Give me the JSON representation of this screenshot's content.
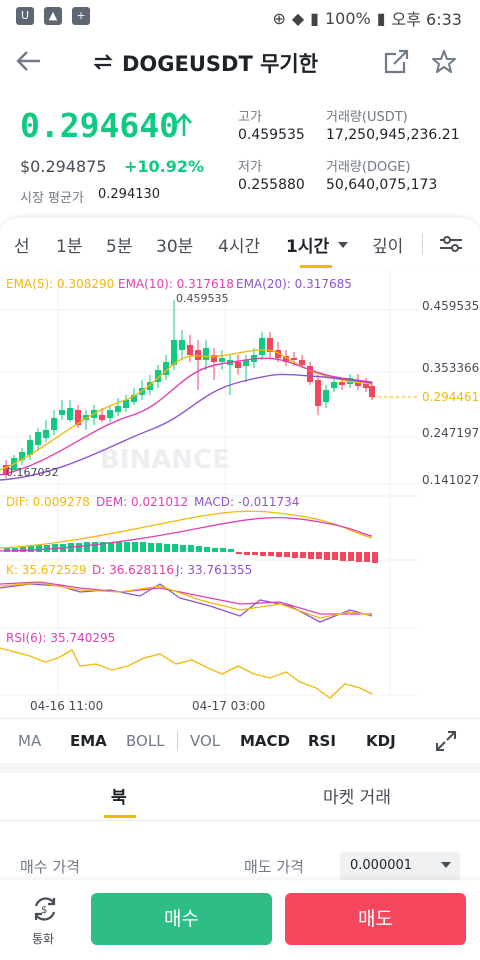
{
  "status_bar": {
    "battery": "100%",
    "time": "오후 6:33"
  },
  "header": {
    "title": "DOGEUSDT 무기한"
  },
  "ticker": {
    "price": "0.294640",
    "usd_price": "$0.294875",
    "change": "+10.92%",
    "mark_label": "시장 평균가",
    "mark_value": "0.294130",
    "high_label": "고가",
    "high_value": "0.459535",
    "low_label": "저가",
    "low_value": "0.255880",
    "vol_usdt_label": "거래량(USDT)",
    "vol_usdt_value": "17,250,945,236.21",
    "vol_doge_label": "거래량(DOGE)",
    "vol_doge_value": "50,640,075,173"
  },
  "tabs": {
    "line": "선",
    "m1": "1분",
    "m5": "5분",
    "m30": "30분",
    "h4": "4시간",
    "h1": "1시간",
    "depth": "깊이"
  },
  "chart": {
    "ema5": "EMA(5): 0.308290",
    "ema10": "EMA(10): 0.317618",
    "ema20": "EMA(20): 0.317685",
    "high_marker": "0.459535",
    "low_marker": "0.167052",
    "axis": [
      "0.459535",
      "0.353366",
      "0.294461",
      "0.247197",
      "0.141027"
    ],
    "watermark": "BINANCE",
    "macd_dif": "DIF: 0.009278",
    "macd_dem": "DEM: 0.021012",
    "macd": "MACD: -0.011734",
    "kdj_k": "K: 35.672529",
    "kdj_d": "D: 36.628116",
    "kdj_j": "J: 33.761355",
    "rsi": "RSI(6): 35.740295",
    "date1": "04-16 11:00",
    "date2": "04-17 03:00",
    "colors": {
      "up": "#0ecb81",
      "down": "#f6465d",
      "ema5": "#f0b90b",
      "ema10": "#e040b0",
      "ema20": "#8e55d0"
    }
  },
  "indicators": {
    "ma": "MA",
    "ema": "EMA",
    "boll": "BOLL",
    "vol": "VOL",
    "macd": "MACD",
    "rsi": "RSI",
    "kdj": "KDJ"
  },
  "book_tabs": {
    "book": "북",
    "market_trades": "마켓 거래"
  },
  "order": {
    "buy_price": "매수 가격",
    "sell_price": "매도 가격",
    "precision": "0.000001"
  },
  "bottom": {
    "swap_label": "통화",
    "buy": "매수",
    "sell": "매도"
  }
}
